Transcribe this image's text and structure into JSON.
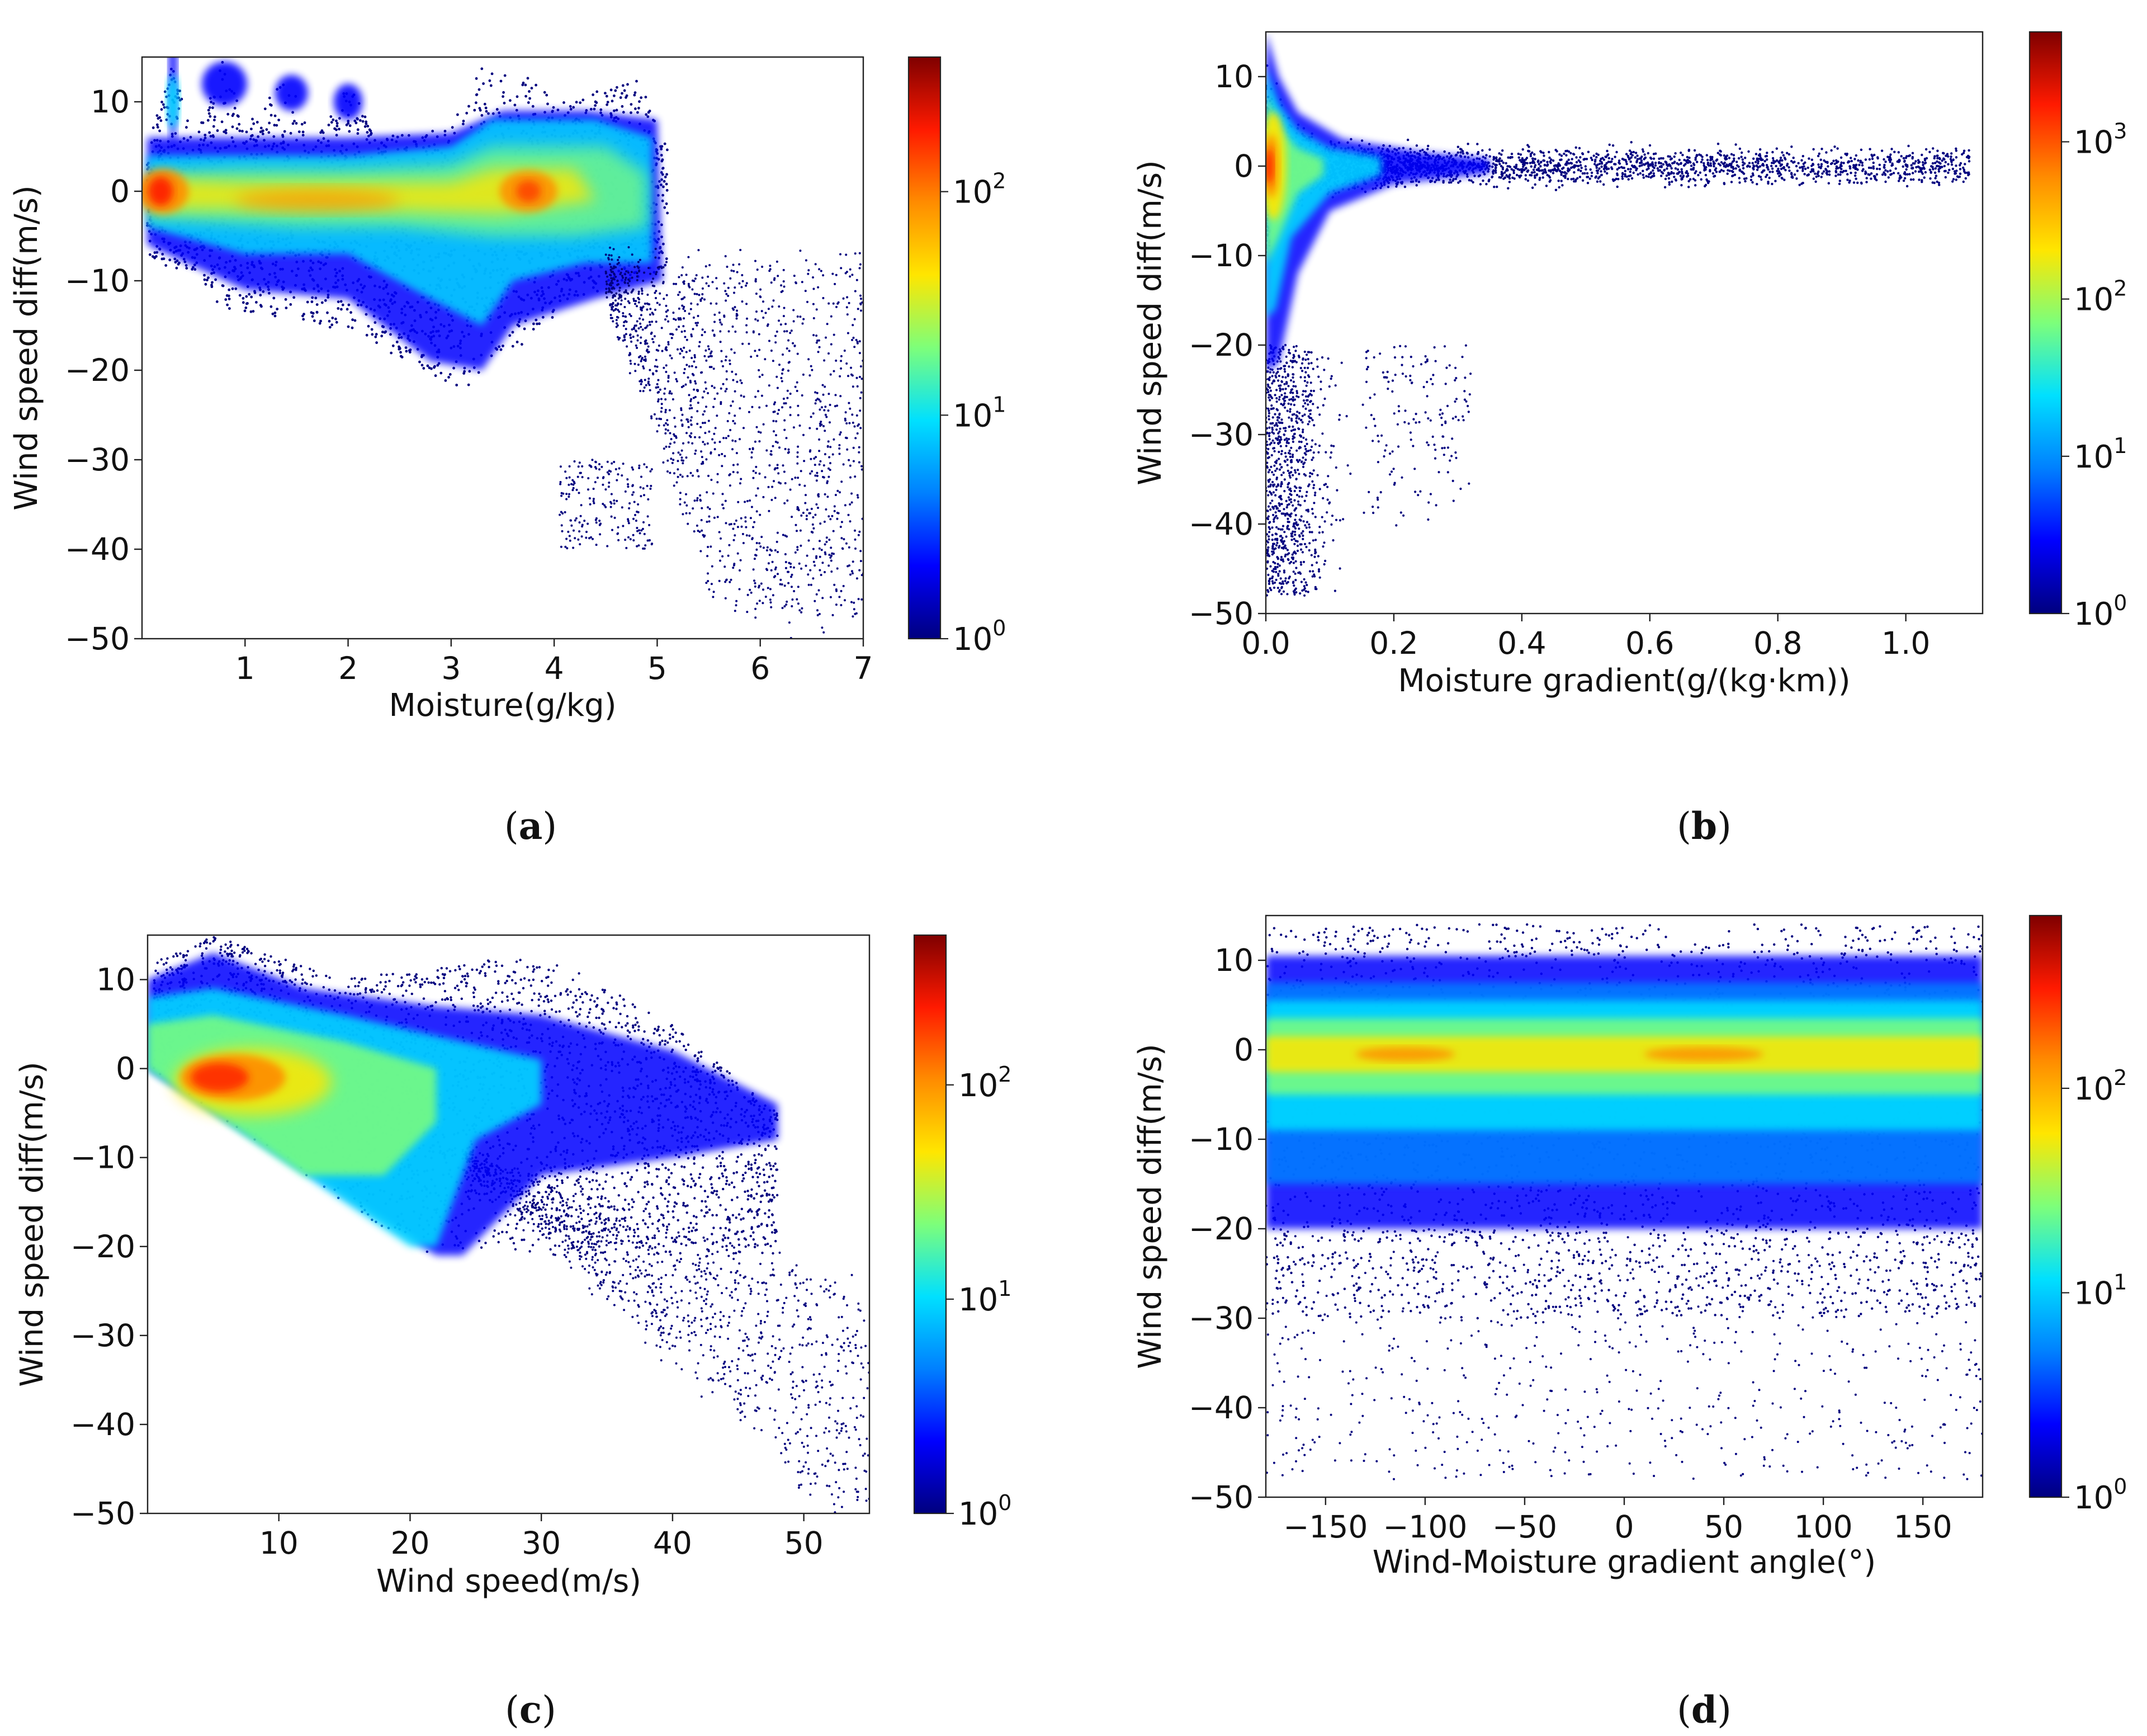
{
  "figure": {
    "type": "multi-panel density scatter",
    "colormap": [
      "#00007f",
      "#0000ff",
      "#0080ff",
      "#00e0ff",
      "#7dff7a",
      "#ffe600",
      "#ff8c00",
      "#ff1a00",
      "#7f0000"
    ],
    "point_color": "#00007f"
  },
  "chart_data": [
    {
      "id": "a",
      "type": "heatmap",
      "caption_letter": "a",
      "xlabel": "Moisture(g/kg)",
      "ylabel": "Wind speed diff(m/s)",
      "xlim": [
        0,
        7
      ],
      "ylim": [
        -50,
        15
      ],
      "xticks": [
        1,
        2,
        3,
        4,
        5,
        6,
        7
      ],
      "yticks": [
        10,
        0,
        -10,
        -20,
        -30,
        -40,
        -50
      ],
      "colorbar": {
        "scale": "log",
        "min": 1,
        "max": 400,
        "tick_values": [
          1,
          10,
          100
        ],
        "tick_exponents": [
          "0",
          "1",
          "2"
        ]
      },
      "density_shape": {
        "upper_envelope": [
          [
            0.05,
            5
          ],
          [
            0.3,
            14
          ],
          [
            0.5,
            6
          ],
          [
            0.8,
            15
          ],
          [
            1.0,
            7
          ],
          [
            1.4,
            13
          ],
          [
            1.7,
            6
          ],
          [
            2.0,
            12
          ],
          [
            2.3,
            6
          ],
          [
            3.0,
            7
          ],
          [
            3.3,
            14
          ],
          [
            3.6,
            13
          ],
          [
            4.2,
            10
          ],
          [
            4.8,
            13
          ],
          [
            5.1,
            5
          ]
        ],
        "lower_envelope": [
          [
            0.05,
            -7
          ],
          [
            0.5,
            -10
          ],
          [
            1.0,
            -14
          ],
          [
            2.0,
            -15
          ],
          [
            2.7,
            -20
          ],
          [
            3.2,
            -22
          ],
          [
            3.6,
            -18
          ],
          [
            4.2,
            -12
          ],
          [
            5.0,
            -9
          ]
        ],
        "hotspots": [
          {
            "x": 0.2,
            "y": 0,
            "count": 300
          },
          {
            "x": 1.6,
            "y": -1,
            "count": 120
          },
          {
            "x": 3.7,
            "y": 0,
            "count": 200
          }
        ],
        "sparse_tail": {
          "x_range": [
            4.5,
            7.0
          ],
          "y_range": [
            -50,
            -5
          ]
        }
      }
    },
    {
      "id": "b",
      "type": "heatmap",
      "caption_letter": "b",
      "xlabel": "Moisture gradient(g/(kg·km))",
      "ylabel": "Wind speed diff(m/s)",
      "xlim": [
        0,
        1.12
      ],
      "ylim": [
        -50,
        15
      ],
      "xticks": [
        0.0,
        0.2,
        0.4,
        0.6,
        0.8,
        1.0
      ],
      "xtick_labels": [
        "0.0",
        "0.2",
        "0.4",
        "0.6",
        "0.8",
        "1.0"
      ],
      "yticks": [
        10,
        0,
        -10,
        -20,
        -30,
        -40,
        -50
      ],
      "colorbar": {
        "scale": "log",
        "min": 1,
        "max": 5000,
        "tick_values": [
          1,
          10,
          100,
          1000
        ],
        "tick_exponents": [
          "0",
          "1",
          "2",
          "3"
        ]
      },
      "density_shape": {
        "peak": {
          "x": 0.005,
          "y": 0,
          "count": 4000
        },
        "horizontal_spread_to_x": 1.1,
        "vertical_range_near_zero": [
          -22,
          15
        ],
        "sparse_tail": {
          "x_range": [
            0.0,
            0.32
          ],
          "y_range": [
            -50,
            -20
          ]
        }
      }
    },
    {
      "id": "c",
      "type": "heatmap",
      "caption_letter": "c",
      "xlabel": "Wind speed(m/s)",
      "ylabel": "Wind speed diff(m/s)",
      "xlim": [
        0,
        55
      ],
      "ylim": [
        -50,
        15
      ],
      "xticks": [
        10,
        20,
        30,
        40,
        50
      ],
      "yticks": [
        10,
        0,
        -10,
        -20,
        -30,
        -40,
        -50
      ],
      "colorbar": {
        "scale": "log",
        "min": 1,
        "max": 500,
        "tick_values": [
          1,
          10,
          100
        ],
        "tick_exponents": [
          "0",
          "1",
          "2"
        ]
      },
      "density_shape": {
        "lower_boundary": "y = -x",
        "peak": {
          "x": 6,
          "y": -1,
          "count": 400
        },
        "upper_envelope": [
          [
            0.5,
            12
          ],
          [
            5,
            15
          ],
          [
            15,
            10
          ],
          [
            30,
            13
          ],
          [
            40,
            5
          ],
          [
            48,
            -5
          ]
        ],
        "sparse_tail": {
          "x_range": [
            24,
            55
          ],
          "y_range": [
            -50,
            -10
          ]
        }
      }
    },
    {
      "id": "d",
      "type": "heatmap",
      "caption_letter": "d",
      "xlabel": "Wind-Moisture gradient angle(°)",
      "ylabel": "Wind speed diff(m/s)",
      "xlim": [
        -180,
        180
      ],
      "ylim": [
        -50,
        15
      ],
      "xticks": [
        -150,
        -100,
        -50,
        0,
        50,
        100,
        150
      ],
      "xtick_labels": [
        "−150",
        "−100",
        "−50",
        "0",
        "50",
        "100",
        "150"
      ],
      "yticks": [
        10,
        0,
        -10,
        -20,
        -30,
        -40,
        -50
      ],
      "colorbar": {
        "scale": "log",
        "min": 1,
        "max": 700,
        "tick_values": [
          1,
          10,
          100
        ],
        "tick_exponents": [
          "0",
          "1",
          "2"
        ]
      },
      "density_shape": {
        "band_center": -1,
        "band_core_halfwidth": 6,
        "band_outer_range": [
          -20,
          10
        ],
        "sparse_range": [
          -50,
          15
        ]
      }
    }
  ]
}
